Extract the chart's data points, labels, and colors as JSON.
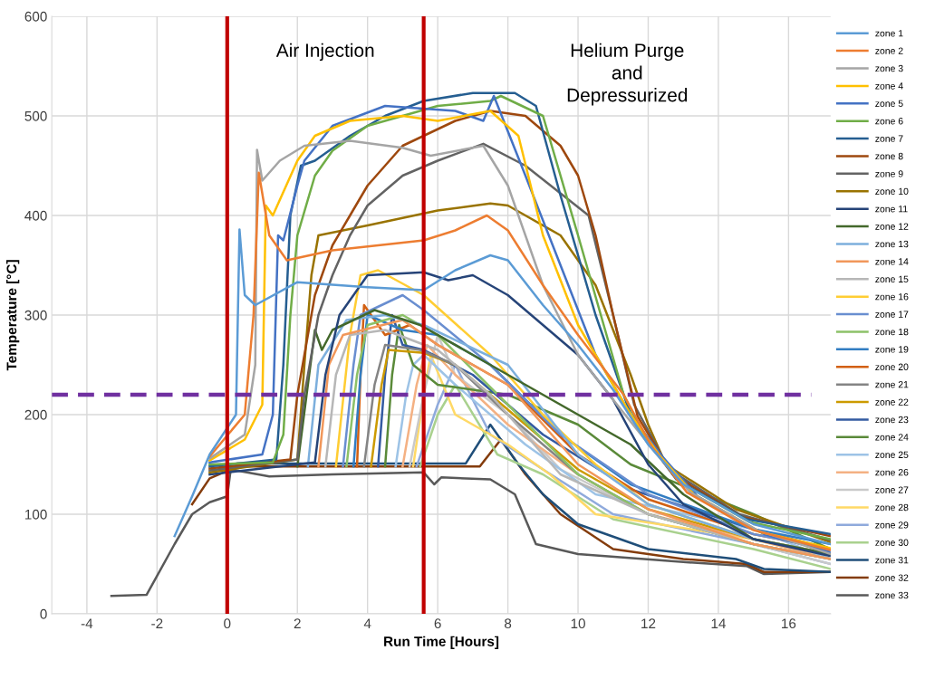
{
  "chart_data": {
    "type": "line",
    "xlabel": "Run Time [Hours]",
    "ylabel": "Temperature [°C]",
    "xlim": [
      -5,
      17.2
    ],
    "xticks": [
      -4,
      -2,
      0,
      2,
      4,
      6,
      8,
      10,
      12,
      14,
      16
    ],
    "ylim": [
      0,
      600
    ],
    "yticks": [
      0,
      100,
      200,
      300,
      400,
      500,
      600
    ],
    "grid": true,
    "legend": "right",
    "marker": "none",
    "line_style": "solid",
    "annotations": [
      "Air Injection",
      "Helium Purge\nand\nDepressurized"
    ],
    "ref_lines": [
      {
        "axis": "x",
        "value": 0,
        "color": "#c00000",
        "line_style": "solid"
      },
      {
        "axis": "x",
        "value": 5.6,
        "color": "#c00000",
        "line_style": "solid"
      },
      {
        "axis": "y",
        "value": 220,
        "color": "#7030a0",
        "line_style": "dashed"
      }
    ],
    "series": [
      {
        "name": "zone 1",
        "color": "#5b9bd5",
        "x": [
          -1.5,
          -1,
          -0.5,
          0.25,
          0.35,
          0.5,
          0.8,
          2,
          4,
          5.6,
          6.5,
          7.5,
          8,
          9,
          10,
          11,
          12,
          13,
          15,
          17.2
        ],
        "values": [
          78,
          118,
          160,
          200,
          386,
          320,
          310,
          333,
          328,
          325,
          345,
          360,
          355,
          310,
          270,
          225,
          170,
          130,
          90,
          70
        ]
      },
      {
        "name": "zone 2",
        "color": "#ed7d31",
        "x": [
          -0.5,
          0.5,
          0.75,
          0.9,
          1.2,
          1.7,
          3,
          5.6,
          6.5,
          7.4,
          8,
          9,
          10,
          11.3,
          12.1,
          13.1,
          15,
          17.2
        ],
        "values": [
          158,
          200,
          300,
          443,
          380,
          355,
          365,
          375,
          385,
          400,
          385,
          330,
          280,
          220,
          168,
          122,
          84,
          64
        ]
      },
      {
        "name": "zone 3",
        "color": "#a5a5a5",
        "x": [
          -0.5,
          0.5,
          0.8,
          0.85,
          1,
          1.5,
          2.2,
          3.5,
          5,
          5.8,
          7.3,
          8,
          9,
          10,
          11,
          12.2,
          13.2,
          15.1,
          17.2
        ],
        "values": [
          156,
          180,
          250,
          466,
          435,
          455,
          470,
          475,
          468,
          460,
          470,
          430,
          330,
          260,
          215,
          162,
          122,
          84,
          60
        ]
      },
      {
        "name": "zone 4",
        "color": "#ffc000",
        "x": [
          -0.5,
          0.5,
          1,
          1.1,
          1.3,
          2,
          2.5,
          3.5,
          5,
          6,
          7.5,
          8.3,
          9,
          10,
          11.5,
          12.3,
          13.3,
          15.2,
          17.2
        ],
        "values": [
          154,
          175,
          210,
          410,
          400,
          455,
          480,
          495,
          500,
          495,
          505,
          480,
          380,
          290,
          200,
          160,
          120,
          82,
          66
        ]
      },
      {
        "name": "zone 5",
        "color": "#4472c4",
        "x": [
          -0.5,
          1,
          1.3,
          1.45,
          1.6,
          2,
          2.2,
          3,
          4.5,
          6.5,
          7.3,
          7.6,
          8.5,
          9.5,
          10.5,
          11.5,
          12.4,
          13.4,
          15.3,
          17.2
        ],
        "values": [
          152,
          160,
          200,
          380,
          375,
          430,
          455,
          490,
          510,
          505,
          495,
          520,
          440,
          350,
          260,
          200,
          158,
          118,
          80,
          62
        ]
      },
      {
        "name": "zone 6",
        "color": "#70ad47",
        "x": [
          -0.5,
          1.3,
          1.6,
          1.8,
          2,
          2.5,
          3,
          4,
          6,
          7.5,
          7.8,
          9,
          10,
          11.3,
          11.9,
          12.9,
          14.9,
          17.2
        ],
        "values": [
          150,
          152,
          180,
          300,
          380,
          440,
          465,
          490,
          510,
          515,
          520,
          500,
          380,
          220,
          178,
          132,
          92,
          75
        ]
      },
      {
        "name": "zone 7",
        "color": "#255e91",
        "x": [
          -0.5,
          1.4,
          1.6,
          1.8,
          2.1,
          2.5,
          3.5,
          4.5,
          5.6,
          7,
          8.2,
          8.8,
          9.5,
          10.5,
          11.5,
          11.8,
          12.8,
          14.8,
          17.2
        ],
        "values": [
          148,
          155,
          250,
          400,
          450,
          455,
          480,
          500,
          515,
          523,
          523,
          510,
          420,
          300,
          200,
          182,
          135,
          95,
          80
        ]
      },
      {
        "name": "zone 8",
        "color": "#9e480e",
        "x": [
          -0.5,
          1.8,
          2,
          2.5,
          3,
          3.5,
          4,
          5,
          6.5,
          7.5,
          8.5,
          9.5,
          10,
          10.5,
          11,
          11.7,
          12.7,
          14.7,
          17.2
        ],
        "values": [
          146,
          155,
          220,
          320,
          370,
          400,
          430,
          470,
          495,
          505,
          500,
          470,
          440,
          380,
          300,
          198,
          140,
          97,
          78
        ]
      },
      {
        "name": "zone 9",
        "color": "#636363",
        "x": [
          -0.5,
          2,
          2.2,
          2.6,
          3,
          3.5,
          4,
          5,
          6,
          7.3,
          8.5,
          10.3,
          11,
          11.6,
          12.6,
          14.6,
          17.2
        ],
        "values": [
          144,
          155,
          220,
          300,
          340,
          380,
          410,
          440,
          455,
          472,
          450,
          400,
          300,
          210,
          145,
          100,
          74
        ]
      },
      {
        "name": "zone 10",
        "color": "#997300",
        "x": [
          -0.5,
          2,
          2.2,
          2.4,
          2.6,
          4,
          6,
          7.5,
          8,
          9.5,
          10.5,
          11.5,
          12,
          12.5,
          14.5,
          17.2
        ],
        "values": [
          142,
          155,
          250,
          340,
          380,
          390,
          405,
          412,
          410,
          380,
          330,
          240,
          190,
          150,
          105,
          72
        ]
      },
      {
        "name": "zone 11",
        "color": "#264478",
        "x": [
          -0.5,
          2.5,
          2.8,
          3.2,
          4,
          5.6,
          6.3,
          7,
          8,
          9,
          10,
          11,
          12,
          13,
          15,
          17.2
        ],
        "values": [
          140,
          152,
          240,
          300,
          340,
          343,
          335,
          340,
          320,
          290,
          260,
          215,
          150,
          110,
          75,
          58
        ]
      },
      {
        "name": "zone 12",
        "color": "#43682b",
        "x": [
          2,
          2.5,
          2.7,
          3,
          4.2,
          5.5,
          7,
          9,
          10,
          11.5,
          13,
          15,
          17.2
        ],
        "values": [
          148,
          285,
          265,
          285,
          305,
          290,
          260,
          220,
          200,
          170,
          120,
          75,
          60
        ]
      },
      {
        "name": "zone 13",
        "color": "#7cafdd",
        "x": [
          2.3,
          2.6,
          3.4,
          4.5,
          5.6,
          8,
          10,
          12,
          15,
          17.2
        ],
        "values": [
          148,
          250,
          295,
          300,
          290,
          250,
          160,
          110,
          75,
          60
        ]
      },
      {
        "name": "zone 14",
        "color": "#f1975a",
        "x": [
          2.6,
          2.9,
          3.3,
          5,
          6,
          8,
          10,
          12,
          15,
          17.2
        ],
        "values": [
          148,
          250,
          280,
          295,
          270,
          230,
          150,
          105,
          70,
          55
        ]
      },
      {
        "name": "zone 15",
        "color": "#b7b7b7",
        "x": [
          2.8,
          3.1,
          3.5,
          4.5,
          6,
          7.5,
          9.5,
          12,
          15,
          17.2
        ],
        "values": [
          148,
          240,
          280,
          285,
          265,
          220,
          140,
          100,
          70,
          55
        ]
      },
      {
        "name": "zone 16",
        "color": "#ffcd33",
        "x": [
          3.1,
          3.5,
          3.8,
          4.3,
          5.6,
          7.5,
          9,
          10.5,
          12,
          15,
          17.2
        ],
        "values": [
          148,
          280,
          340,
          345,
          320,
          260,
          200,
          150,
          110,
          75,
          60
        ]
      },
      {
        "name": "zone 17",
        "color": "#698ed0",
        "x": [
          3.3,
          3.6,
          3.8,
          5,
          5.6,
          7.5,
          9.5,
          12,
          15,
          17.2
        ],
        "values": [
          148,
          250,
          300,
          320,
          305,
          250,
          180,
          120,
          80,
          65
        ]
      },
      {
        "name": "zone 18",
        "color": "#8cc168",
        "x": [
          3.4,
          3.7,
          4,
          5,
          6,
          8,
          10,
          12,
          15,
          17.2
        ],
        "values": [
          148,
          240,
          290,
          300,
          280,
          210,
          140,
          100,
          70,
          55
        ]
      },
      {
        "name": "zone 19",
        "color": "#327dc2",
        "x": [
          3.6,
          3.8,
          4,
          5,
          6,
          7.5,
          9.5,
          11.5,
          15,
          17.2
        ],
        "values": [
          148,
          240,
          300,
          285,
          280,
          250,
          180,
          130,
          85,
          70
        ]
      },
      {
        "name": "zone 20",
        "color": "#d26012",
        "x": [
          3.7,
          3.8,
          3.9,
          4.5,
          5.2,
          6,
          8,
          10,
          12,
          15,
          17.2
        ],
        "values": [
          148,
          240,
          310,
          280,
          290,
          270,
          230,
          160,
          115,
          80,
          65
        ]
      },
      {
        "name": "zone 21",
        "color": "#848484",
        "x": [
          3.9,
          4.2,
          4.5,
          5.5,
          6.5,
          8,
          10,
          12,
          15,
          17.2
        ],
        "values": [
          148,
          230,
          270,
          265,
          250,
          200,
          140,
          100,
          70,
          55
        ]
      },
      {
        "name": "zone 22",
        "color": "#cc9a00",
        "x": [
          4.1,
          4.4,
          4.6,
          5.6,
          6.5,
          8,
          10,
          12,
          15,
          17.2
        ],
        "values": [
          148,
          230,
          265,
          262,
          250,
          205,
          145,
          105,
          75,
          60
        ]
      },
      {
        "name": "zone 23",
        "color": "#335aa1",
        "x": [
          4.3,
          4.5,
          4.7,
          5,
          5.6,
          7,
          9,
          11.5,
          15,
          17.2
        ],
        "values": [
          148,
          240,
          300,
          270,
          265,
          240,
          180,
          125,
          85,
          65
        ]
      },
      {
        "name": "zone 24",
        "color": "#5a8a39",
        "x": [
          4.5,
          4.7,
          4.9,
          5.3,
          6,
          8,
          10,
          11.5,
          15,
          17.2
        ],
        "values": [
          148,
          240,
          290,
          250,
          230,
          220,
          190,
          150,
          100,
          65
        ]
      },
      {
        "name": "zone 25",
        "color": "#9dc3e6",
        "x": [
          4.8,
          5.1,
          5.3,
          5.6,
          6.5,
          8.5,
          10.5,
          15,
          17.2
        ],
        "values": [
          148,
          220,
          250,
          260,
          230,
          170,
          120,
          85,
          55
        ]
      },
      {
        "name": "zone 26",
        "color": "#f4b183",
        "x": [
          5,
          5.4,
          5.7,
          6.5,
          8,
          10,
          12,
          15,
          17.2
        ],
        "values": [
          148,
          230,
          270,
          240,
          190,
          140,
          100,
          75,
          55
        ]
      },
      {
        "name": "zone 27",
        "color": "#c9c9c9",
        "x": [
          5.2,
          5.6,
          6,
          6.5,
          8,
          9.5,
          12,
          15,
          17.2
        ],
        "values": [
          148,
          220,
          280,
          240,
          200,
          145,
          100,
          70,
          50
        ]
      },
      {
        "name": "zone 28",
        "color": "#ffd966",
        "x": [
          5.3,
          5.6,
          5.8,
          6.5,
          8,
          9.2,
          10.5,
          15,
          17.2
        ],
        "values": [
          148,
          220,
          260,
          200,
          170,
          140,
          100,
          75,
          55
        ]
      },
      {
        "name": "zone 29",
        "color": "#8faadc",
        "x": [
          5.4,
          6,
          6.5,
          7.5,
          9,
          11,
          15,
          17.2
        ],
        "values": [
          148,
          210,
          250,
          180,
          145,
          100,
          70,
          50
        ]
      },
      {
        "name": "zone 30",
        "color": "#a9d18e",
        "x": [
          5.5,
          6,
          6.5,
          7.7,
          9,
          11,
          15,
          17.2
        ],
        "values": [
          148,
          200,
          230,
          160,
          140,
          95,
          65,
          45
        ]
      },
      {
        "name": "zone 31",
        "color": "#1f4e79",
        "x": [
          0.3,
          6.8,
          7.5,
          8.3,
          9,
          10,
          12,
          14.5,
          15.3,
          17.2
        ],
        "values": [
          151,
          151,
          190,
          150,
          120,
          90,
          65,
          55,
          45,
          42
        ]
      },
      {
        "name": "zone 32",
        "color": "#843c0c",
        "x": [
          -1,
          -0.5,
          0.3,
          7.2,
          7.8,
          8.5,
          9.5,
          11,
          13,
          14.8,
          15.3,
          17.2
        ],
        "values": [
          110,
          136,
          148,
          148,
          175,
          140,
          100,
          65,
          55,
          50,
          42,
          42
        ]
      },
      {
        "name": "zone 33",
        "color": "#595959",
        "x": [
          -3.3,
          -2.3,
          -2,
          -1.5,
          -1,
          -0.5,
          0,
          0.1,
          1.2,
          3,
          5.6,
          5.9,
          6.1,
          7.5,
          8.2,
          8.8,
          10,
          13,
          14.8,
          15.3,
          17.2
        ],
        "values": [
          18,
          19,
          38,
          70,
          100,
          112,
          118,
          145,
          138,
          140,
          142,
          130,
          137,
          135,
          120,
          70,
          60,
          52,
          48,
          40,
          42
        ]
      }
    ]
  }
}
